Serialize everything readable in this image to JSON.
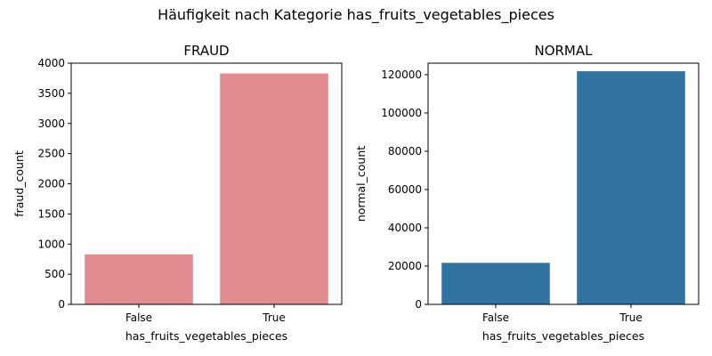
{
  "title": "Häufigkeit nach Kategorie has_fruits_vegetables_pieces",
  "chart_data": [
    {
      "type": "bar",
      "title": "FRAUD",
      "categories": [
        "False",
        "True"
      ],
      "values": [
        830,
        3830
      ],
      "xlabel": "has_fruits_vegetables_pieces",
      "ylabel": "fraud_count",
      "ylim": [
        0,
        4000
      ],
      "yticks": [
        0,
        500,
        1000,
        1500,
        2000,
        2500,
        3000,
        3500,
        4000
      ],
      "color": "#e38c8f",
      "grid": false
    },
    {
      "type": "bar",
      "title": "NORMAL",
      "categories": [
        "False",
        "True"
      ],
      "values": [
        21700,
        121800
      ],
      "xlabel": "has_fruits_vegetables_pieces",
      "ylabel": "normal_count",
      "ylim": [
        0,
        126000
      ],
      "yticks": [
        0,
        20000,
        40000,
        60000,
        80000,
        100000,
        120000
      ],
      "color": "#3274a1",
      "grid": false
    }
  ]
}
